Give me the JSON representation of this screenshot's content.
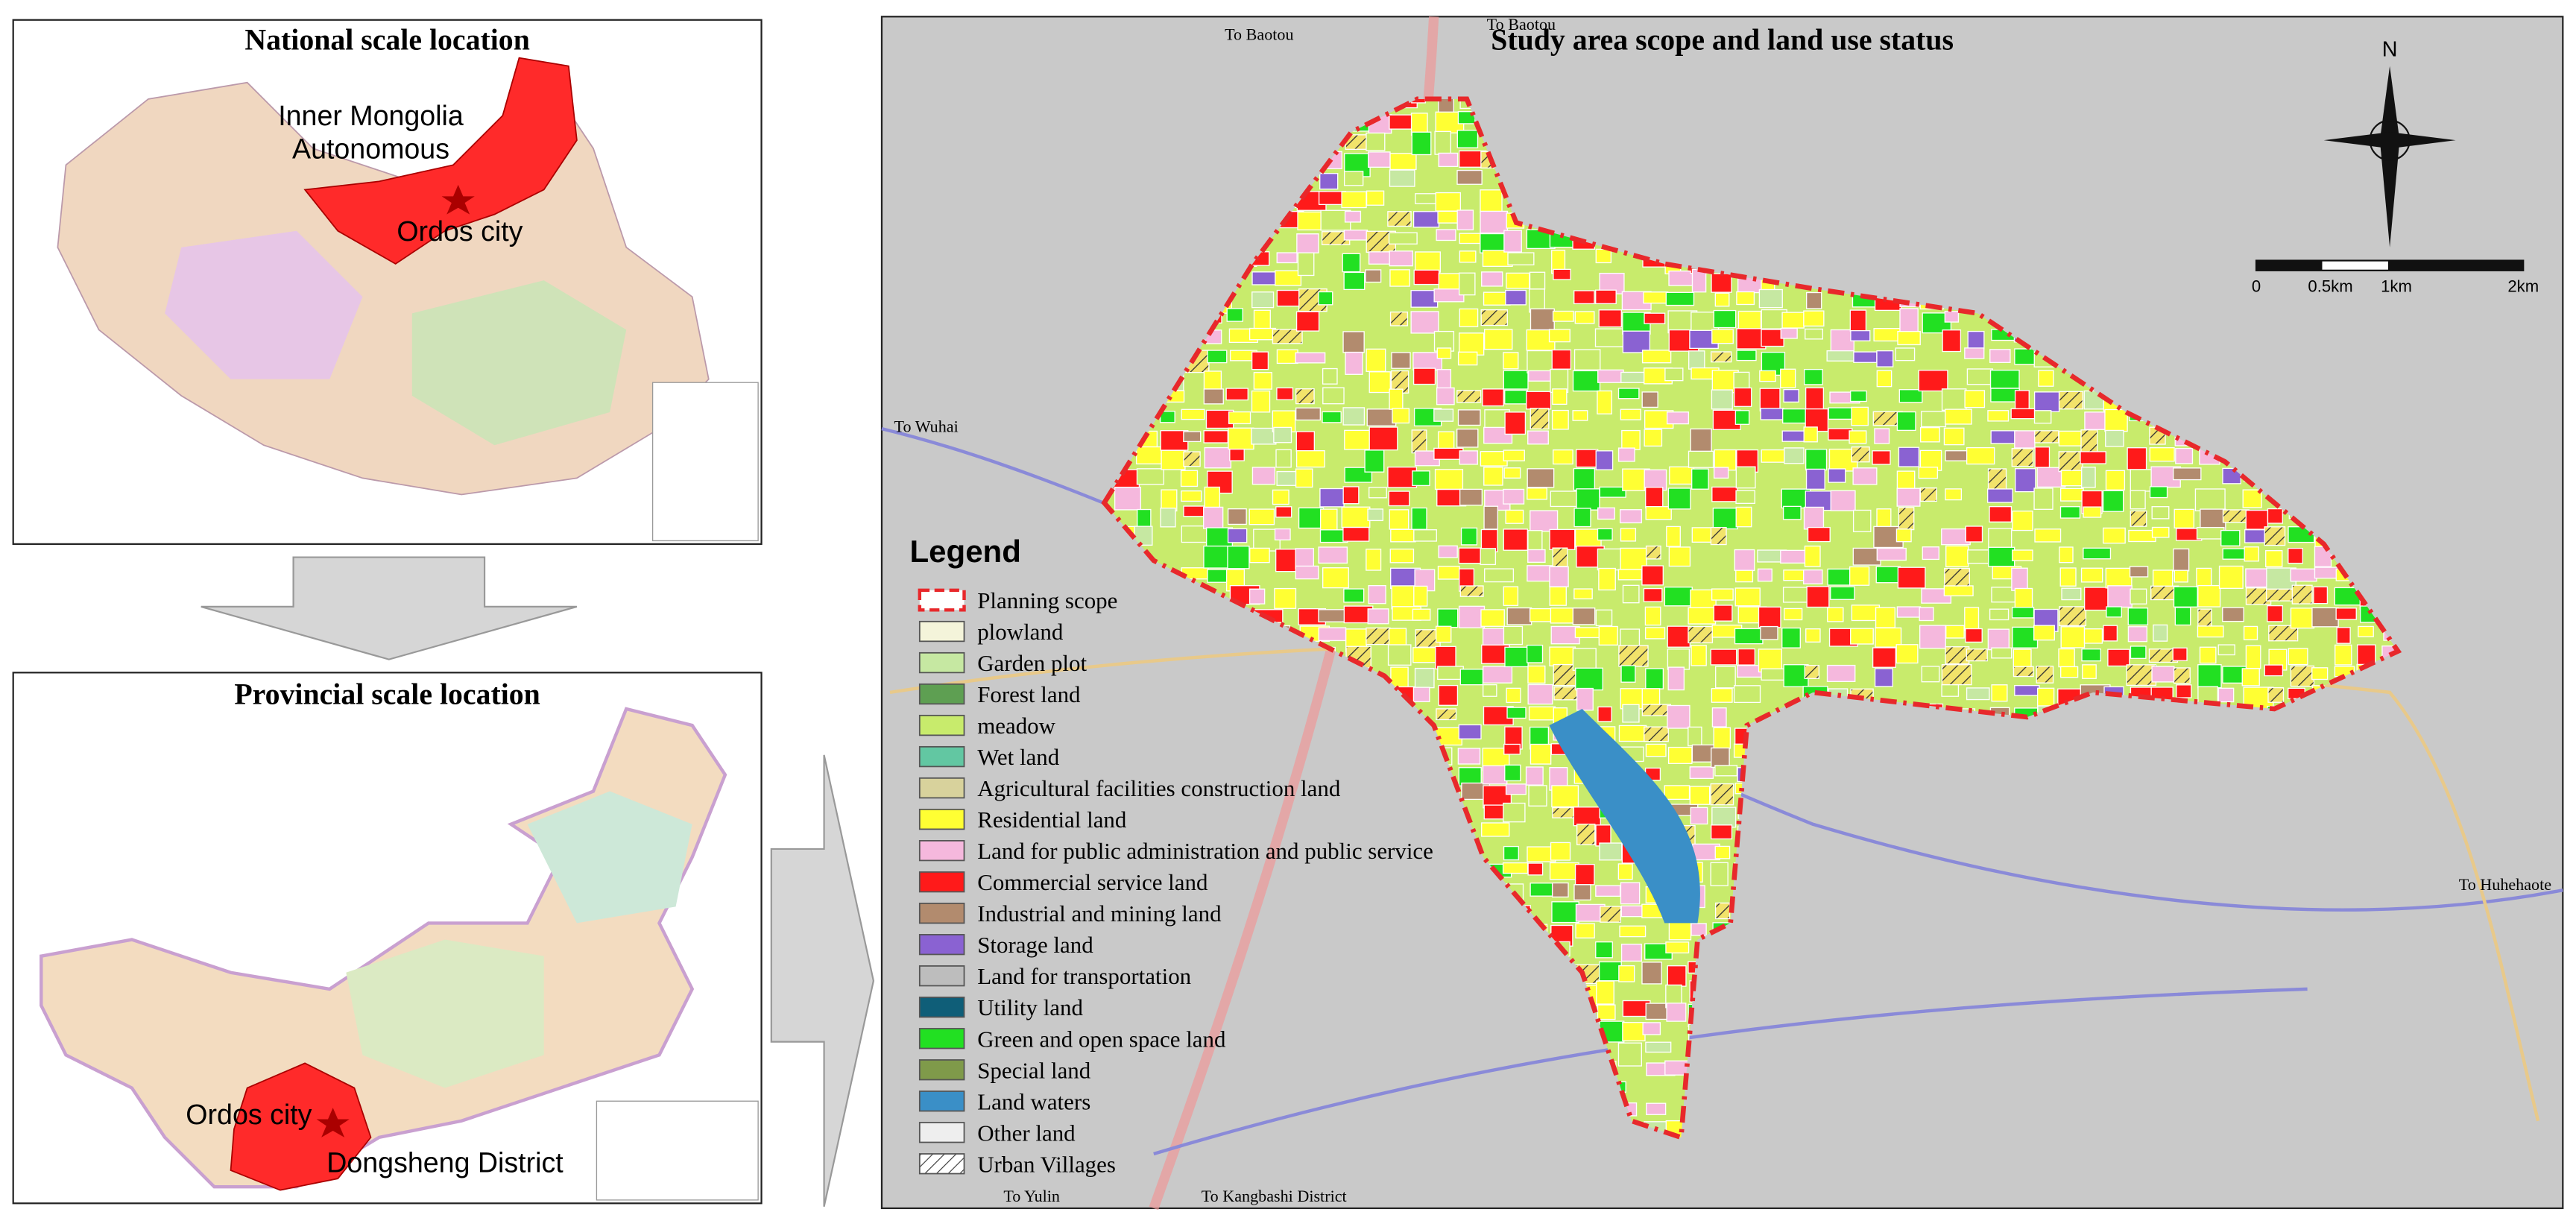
{
  "national_panel": {
    "title": "National scale location",
    "region_label": [
      "Inner Mongolia",
      "Autonomous"
    ],
    "city_label": "Ordos city"
  },
  "provincial_panel": {
    "title": "Provincial scale location",
    "city_label": "Ordos city",
    "district_label": "Dongsheng District"
  },
  "study_map": {
    "title": "Study area scope and land use status",
    "directions": [
      "To Baotou",
      "To Baotou",
      "To Wuhai",
      "To Huhehaote",
      "To Yulin",
      "To Kangbashi District"
    ],
    "north": "N",
    "scale_labels": [
      "0",
      "0.5km",
      "1km",
      "2km"
    ],
    "legend": {
      "title": "Legend",
      "items": [
        {
          "label": "Planning scope",
          "color": "#e8282b",
          "style": "dashed"
        },
        {
          "label": "plowland",
          "color": "#f4f4da"
        },
        {
          "label": "Garden plot",
          "color": "#c6e8a2"
        },
        {
          "label": "Forest land",
          "color": "#5e9f52"
        },
        {
          "label": "meadow",
          "color": "#c8eb6c"
        },
        {
          "label": "Wet land",
          "color": "#62c7a2"
        },
        {
          "label": "Agricultural facilities construction land",
          "color": "#d8d29c"
        },
        {
          "label": "Residential land",
          "color": "#ffff33"
        },
        {
          "label": "Land for public administration and public service",
          "color": "#f5b8dd"
        },
        {
          "label": "Commercial service land",
          "color": "#ff1a1a"
        },
        {
          "label": "Industrial and mining land",
          "color": "#b28b6e"
        },
        {
          "label": "Storage land",
          "color": "#8a62d2"
        },
        {
          "label": "Land for transportation",
          "color": "#bdbdbd"
        },
        {
          "label": "Utility land",
          "color": "#0f5e78"
        },
        {
          "label": "Green and open space land",
          "color": "#22e022"
        },
        {
          "label": "Special land",
          "color": "#7f9a4a"
        },
        {
          "label": "Land waters",
          "color": "#3a8fc7"
        },
        {
          "label": "Other land",
          "color": "#eeeeee"
        },
        {
          "label": "Urban Villages",
          "color": "#ffffff",
          "style": "hatched"
        }
      ]
    }
  }
}
